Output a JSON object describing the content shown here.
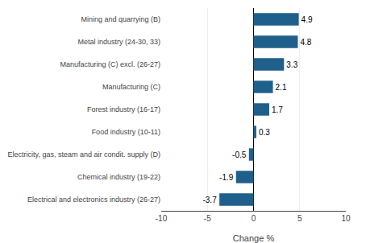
{
  "chart_data": {
    "type": "bar",
    "orientation": "horizontal",
    "categories": [
      "Electrical and electronics industry (26-27)",
      "Chemical industry (19-22)",
      "Electricity, gas, steam and air condit. supply (D)",
      "Food industry (10-11)",
      "Forest industry (16-17)",
      "Manufacturing (C)",
      "Manufacturing (C) excl. (26-27)",
      "Metal industry (24-30, 33)",
      "Mining and quarrying (B)"
    ],
    "values": [
      -3.7,
      -1.9,
      -0.5,
      0.3,
      1.7,
      2.1,
      3.3,
      4.8,
      4.9
    ],
    "color": "#1F5F8B",
    "xlabel": "Change %",
    "xlim": [
      -10,
      10
    ],
    "xticks": [
      -10,
      -5,
      0,
      5,
      10
    ],
    "grid": true,
    "data_labels": true
  }
}
